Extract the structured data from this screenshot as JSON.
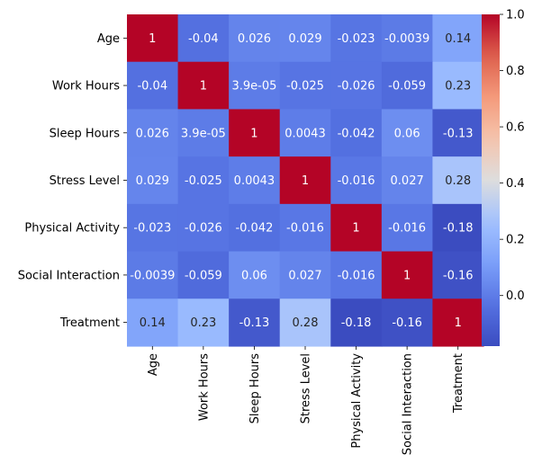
{
  "chart_data": {
    "type": "heatmap",
    "x_labels": [
      "Age",
      "Work Hours",
      "Sleep Hours",
      "Stress Level",
      "Physical Activity",
      "Social Interaction",
      "Treatment"
    ],
    "y_labels": [
      "Age",
      "Work Hours",
      "Sleep Hours",
      "Stress Level",
      "Physical Activity",
      "Social Interaction",
      "Treatment"
    ],
    "values": [
      [
        1,
        -0.04,
        0.026,
        0.029,
        -0.023,
        -0.0039,
        0.14
      ],
      [
        -0.04,
        1,
        3.9e-05,
        -0.025,
        -0.026,
        -0.059,
        0.23
      ],
      [
        0.026,
        3.9e-05,
        1,
        0.0043,
        -0.042,
        0.06,
        -0.13
      ],
      [
        0.029,
        -0.025,
        0.0043,
        1,
        -0.016,
        0.027,
        0.28
      ],
      [
        -0.023,
        -0.026,
        -0.042,
        -0.016,
        1,
        -0.016,
        -0.18
      ],
      [
        -0.0039,
        -0.059,
        0.06,
        0.027,
        -0.016,
        1,
        -0.16
      ],
      [
        0.14,
        0.23,
        -0.13,
        0.28,
        -0.18,
        -0.16,
        1
      ]
    ],
    "annotations": [
      [
        "1",
        "-0.04",
        "0.026",
        "0.029",
        "-0.023",
        "-0.0039",
        "0.14"
      ],
      [
        "-0.04",
        "1",
        "3.9e-05",
        "-0.025",
        "-0.026",
        "-0.059",
        "0.23"
      ],
      [
        "0.026",
        "3.9e-05",
        "1",
        "0.0043",
        "-0.042",
        "0.06",
        "-0.13"
      ],
      [
        "0.029",
        "-0.025",
        "0.0043",
        "1",
        "-0.016",
        "0.027",
        "0.28"
      ],
      [
        "-0.023",
        "-0.026",
        "-0.042",
        "-0.016",
        "1",
        "-0.016",
        "-0.18"
      ],
      [
        "-0.0039",
        "-0.059",
        "0.06",
        "0.027",
        "-0.016",
        "1",
        "-0.16"
      ],
      [
        "0.14",
        "0.23",
        "-0.13",
        "0.28",
        "-0.18",
        "-0.16",
        "1"
      ]
    ],
    "colormap": "coolwarm",
    "vmin": -0.18,
    "vmax": 1,
    "colorbar_ticks": [
      0.0,
      0.2,
      0.4,
      0.6,
      0.8,
      1.0
    ],
    "colorbar_tick_labels": [
      "0.0",
      "0.2",
      "0.4",
      "0.6",
      "0.8",
      "1.0"
    ],
    "title": "",
    "xlabel": "",
    "ylabel": ""
  }
}
